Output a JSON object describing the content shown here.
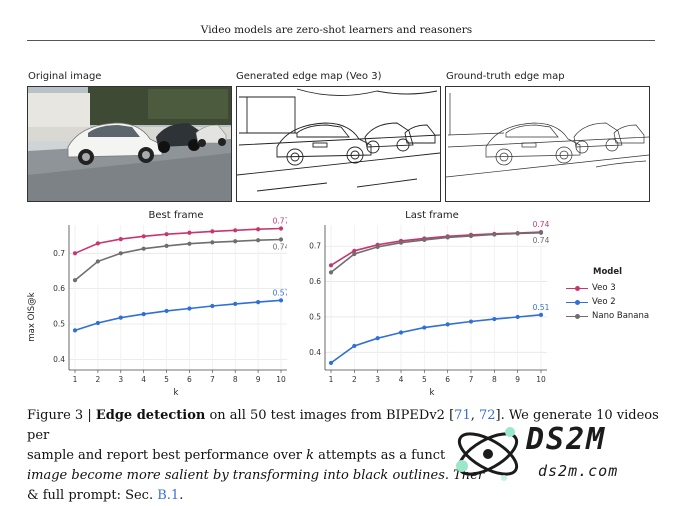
{
  "header": {
    "title": "Video models are zero-shot learners and reasoners"
  },
  "panels": {
    "original": "Original image",
    "generated": "Generated edge map (Veo 3)",
    "ground_truth": "Ground-truth edge map"
  },
  "colors": {
    "veo3": "#c9366f",
    "veo2": "#2f6fd6",
    "nano": "#6e6e6e"
  },
  "legend": {
    "title": "Model",
    "items": [
      "Veo 3",
      "Veo 2",
      "Nano Banana"
    ]
  },
  "chart_data": [
    {
      "type": "line",
      "title": "Best frame",
      "xlabel": "k",
      "ylabel": "max OIS@k",
      "x": [
        1,
        2,
        3,
        4,
        5,
        6,
        7,
        8,
        9,
        10
      ],
      "ylim": [
        0.37,
        0.78
      ],
      "yticks": [
        "0.4",
        "0.5",
        "0.6",
        "0.7"
      ],
      "xticks": [
        "1",
        "2",
        "3",
        "4",
        "5",
        "6",
        "7",
        "8",
        "9",
        "10"
      ],
      "series": [
        {
          "name": "Veo 3",
          "values": [
            0.7,
            0.728,
            0.74,
            0.748,
            0.754,
            0.758,
            0.762,
            0.765,
            0.768,
            0.77
          ],
          "end_label": "0.77"
        },
        {
          "name": "Veo 2",
          "values": [
            0.482,
            0.503,
            0.518,
            0.528,
            0.537,
            0.544,
            0.551,
            0.557,
            0.562,
            0.567
          ],
          "end_label": "0.57"
        },
        {
          "name": "Nano Banana",
          "values": [
            0.624,
            0.677,
            0.7,
            0.713,
            0.721,
            0.727,
            0.731,
            0.734,
            0.737,
            0.739
          ],
          "end_label": "0.74"
        }
      ]
    },
    {
      "type": "line",
      "title": "Last frame",
      "xlabel": "k",
      "ylabel": "",
      "x": [
        1,
        2,
        3,
        4,
        5,
        6,
        7,
        8,
        9,
        10
      ],
      "ylim": [
        0.35,
        0.76
      ],
      "yticks": [
        "0.4",
        "0.5",
        "0.6",
        "0.7"
      ],
      "xticks": [
        "1",
        "2",
        "3",
        "4",
        "5",
        "6",
        "7",
        "8",
        "9",
        "10"
      ],
      "series": [
        {
          "name": "Veo 3",
          "values": [
            0.646,
            0.687,
            0.704,
            0.715,
            0.722,
            0.728,
            0.732,
            0.735,
            0.737,
            0.74
          ],
          "end_label": "0.74"
        },
        {
          "name": "Veo 2",
          "values": [
            0.37,
            0.418,
            0.44,
            0.456,
            0.47,
            0.479,
            0.487,
            0.494,
            0.5,
            0.506
          ],
          "end_label": "0.51"
        },
        {
          "name": "Nano Banana",
          "values": [
            0.626,
            0.678,
            0.698,
            0.71,
            0.718,
            0.725,
            0.729,
            0.733,
            0.736,
            0.738
          ],
          "end_label": "0.74"
        }
      ]
    }
  ],
  "caption": {
    "fig_label": "Figure 3 | ",
    "bold_title": "Edge detection",
    "line1_rest": " on all 50 test images from BIPEDv2 [",
    "ref1": "71",
    "ref_sep": ", ",
    "ref2": "72",
    "line1_end": "]. We generate 10 videos per",
    "line2_a": "sample and report best performance over ",
    "line2_k": "k",
    "line2_b": " attempts as a funct",
    "line3_italic": "image become more salient by transforming into black outlines. Ther",
    "line4_a": "& full prompt: Sec. ",
    "line4_ref": "B.1",
    "line4_b": "."
  },
  "watermark": {
    "brand": "DS2M",
    "url": "ds2m.com"
  }
}
